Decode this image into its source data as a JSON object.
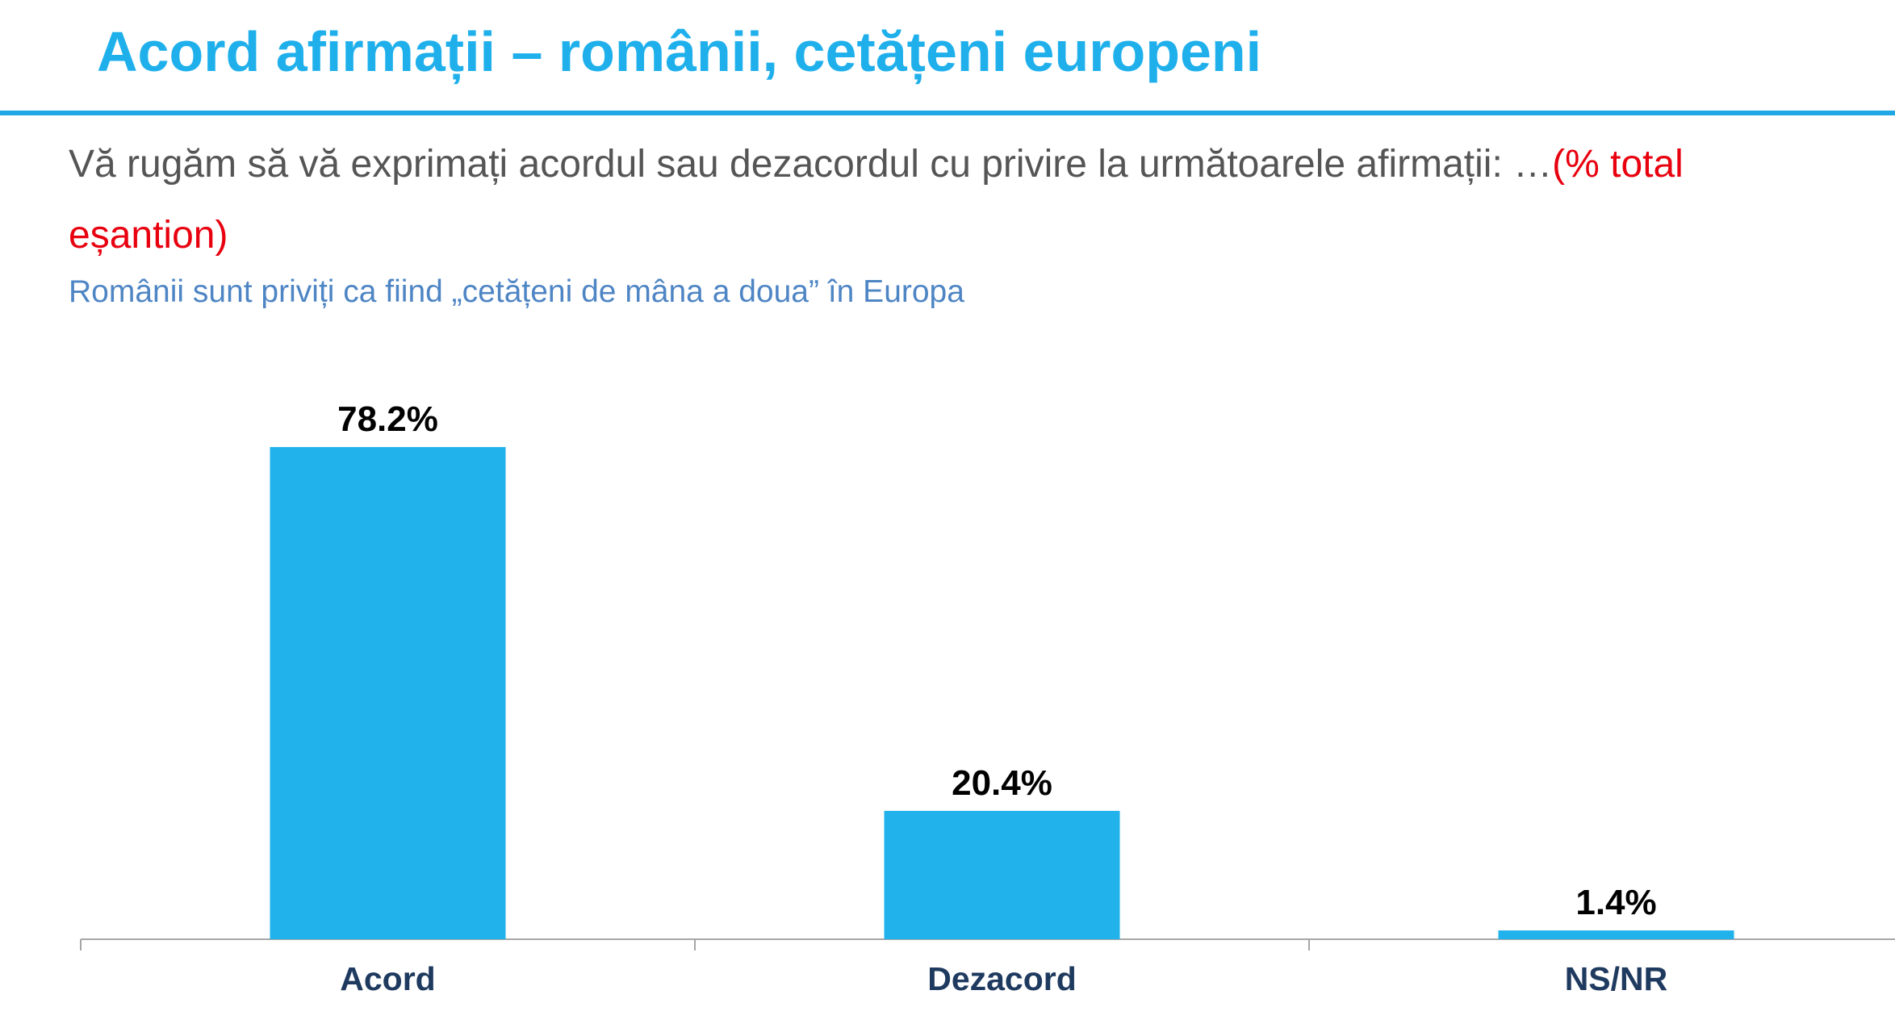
{
  "header": {
    "title": "Acord afirmații – românii, cetățeni europeni"
  },
  "question": {
    "text": "Vă rugăm să vă exprimați acordul sau dezacordul cu privire la următoarele afirmații: …",
    "highlight": "(% total eșantion)"
  },
  "statement": "Românii sunt priviți ca fiind „cetățeni de mâna a doua” în Europa",
  "colors": {
    "title": "#1fb0ec",
    "bars": "#21b2ec",
    "highlight": "#e8000f",
    "statement": "#4e85c4",
    "category_labels": "#1f3a5f"
  },
  "chart_data": {
    "type": "bar",
    "title": "",
    "xlabel": "",
    "ylabel": "",
    "categories": [
      "Acord",
      "Dezacord",
      "NS/NR"
    ],
    "values": [
      78.2,
      20.4,
      1.4
    ],
    "value_labels": [
      "78.2%",
      "20.4%",
      "1.4%"
    ],
    "ylim": [
      0,
      100
    ],
    "grid": false,
    "legend": "none"
  }
}
